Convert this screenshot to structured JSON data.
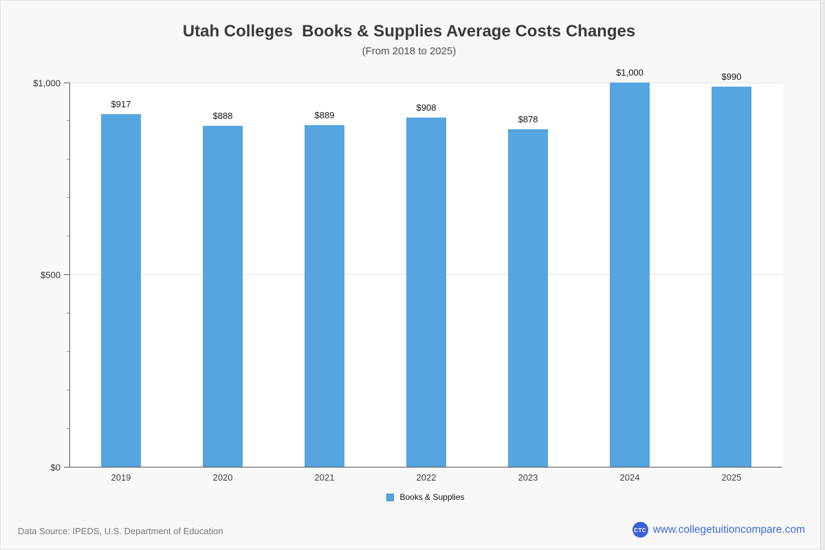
{
  "title": "Utah Colleges  Books & Supplies Average Costs Changes",
  "subtitle": "(From 2018 to 2025)",
  "chart_data": {
    "type": "bar",
    "title": "Utah Colleges  Books & Supplies Average Costs Changes",
    "subtitle": "(From 2018 to 2025)",
    "categories": [
      "2019",
      "2020",
      "2021",
      "2022",
      "2023",
      "2024",
      "2025"
    ],
    "values": [
      917,
      888,
      889,
      908,
      878,
      1000,
      990
    ],
    "value_labels": [
      "$917",
      "$888",
      "$889",
      "$908",
      "$878",
      "$1,000",
      "$990"
    ],
    "series_name": "Books & Supplies",
    "xlabel": "",
    "ylabel": "",
    "ylim": [
      0,
      1000
    ],
    "yticks": [
      0,
      500,
      1000
    ],
    "ytick_labels": [
      "$0",
      "$500",
      "$1,000"
    ],
    "minor_tick_step": 100,
    "grid": true,
    "legend_position": "bottom",
    "bar_color": "#56a5e0"
  },
  "legend": {
    "label": "Books & Supplies",
    "swatch_color": "#56a5e0"
  },
  "footer": {
    "source": "Data Source: IPEDS, U.S. Department of Education",
    "logo_text": "CTC",
    "website": "www.collegetuitioncompare.com"
  }
}
